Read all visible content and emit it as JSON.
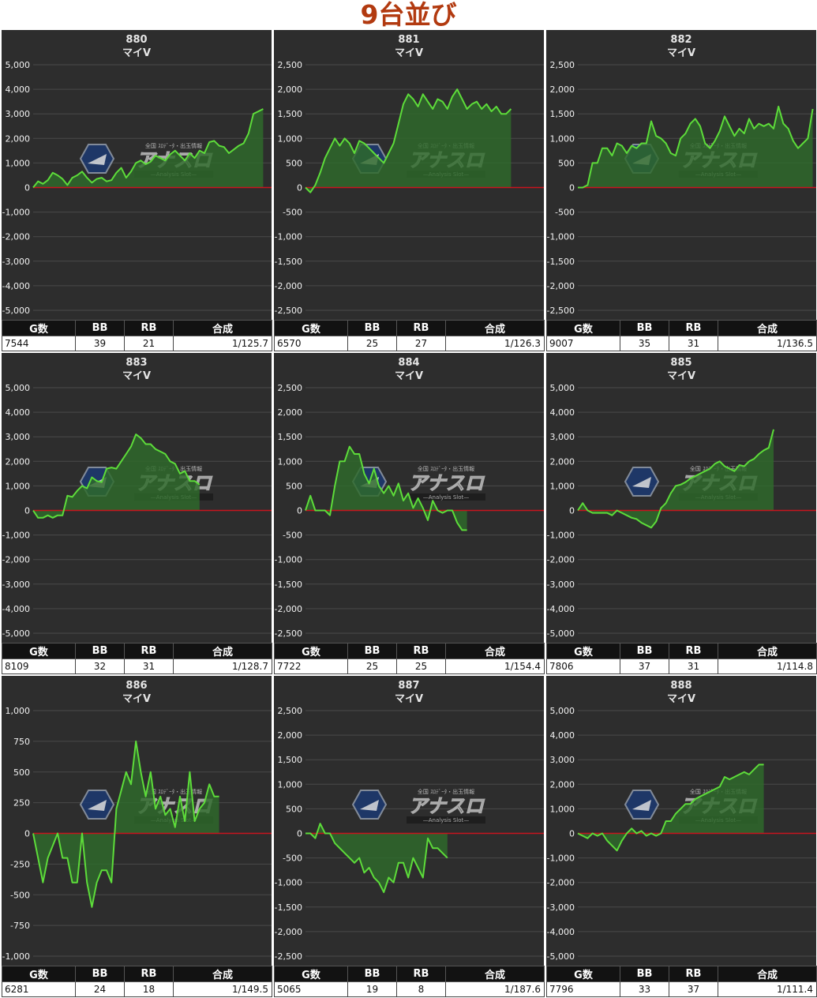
{
  "page": {
    "title": "9台並び"
  },
  "table_headers": {
    "games": "G数",
    "bb": "BB",
    "rb": "RB",
    "combined": "合成"
  },
  "watermark": {
    "top_text": "全国 ｽﾛﾃﾞｰﾀ・出玉情報",
    "logo_text": "アナスロ",
    "sub_text": "—Analysis Slot—"
  },
  "colors": {
    "background": "#2d2d2d",
    "grid": "#4a4a4a",
    "line": "#5ddc3a",
    "fill": "#2e6a2b",
    "zero_line": "#c8141e",
    "title": "#b23a10"
  },
  "chart_data": [
    {
      "type": "area",
      "title": "880",
      "subtitle": "マイV",
      "ylim": [
        -5000,
        5000
      ],
      "yticks": [
        "5,000",
        "4,000",
        "3,000",
        "2,000",
        "1,000",
        "0",
        "-1,000",
        "-2,000",
        "-3,000",
        "-4,000",
        "-5,000"
      ],
      "values": [
        0,
        250,
        150,
        300,
        600,
        500,
        350,
        100,
        400,
        500,
        650,
        400,
        200,
        350,
        400,
        250,
        300,
        600,
        800,
        400,
        650,
        1000,
        1100,
        950,
        1050,
        1300,
        1200,
        1100,
        1350,
        1500,
        1300,
        1100,
        1400,
        1200,
        1500,
        1400,
        1850,
        1900,
        1700,
        1650,
        1400,
        1550,
        1700,
        1800,
        2200,
        3000,
        3100,
        3200
      ],
      "stats": {
        "games": "7544",
        "bb": "39",
        "rb": "21",
        "combined": "1/125.7"
      }
    },
    {
      "type": "area",
      "title": "881",
      "subtitle": "マイV",
      "ylim": [
        -2500,
        2500
      ],
      "yticks": [
        "2,500",
        "2,000",
        "1,500",
        "1,000",
        "500",
        "0",
        "-500",
        "-1,000",
        "-1,500",
        "-2,000",
        "-2,500"
      ],
      "values": [
        0,
        -100,
        50,
        300,
        600,
        800,
        1000,
        850,
        1000,
        900,
        700,
        950,
        900,
        800,
        700,
        600,
        500,
        700,
        900,
        1300,
        1700,
        1900,
        1800,
        1650,
        1900,
        1750,
        1600,
        1800,
        1750,
        1600,
        1850,
        2000,
        1800,
        1600,
        1700,
        1750,
        1600,
        1700,
        1550,
        1650,
        1500,
        1500,
        1600
      ],
      "stats": {
        "games": "6570",
        "bb": "25",
        "rb": "27",
        "combined": "1/126.3"
      }
    },
    {
      "type": "area",
      "title": "882",
      "subtitle": "マイV",
      "ylim": [
        -2500,
        2500
      ],
      "yticks": [
        "2,500",
        "2,000",
        "1,500",
        "1,000",
        "500",
        "0",
        "-500",
        "-1,000",
        "-1,500",
        "-2,000",
        "-2,500"
      ],
      "values": [
        0,
        0,
        50,
        500,
        500,
        800,
        800,
        650,
        900,
        850,
        700,
        850,
        800,
        900,
        900,
        1350,
        1050,
        1000,
        900,
        700,
        650,
        1000,
        1100,
        1300,
        1400,
        1250,
        900,
        800,
        950,
        1150,
        1450,
        1250,
        1050,
        1200,
        1100,
        1400,
        1200,
        1300,
        1250,
        1300,
        1200,
        1650,
        1300,
        1200,
        950,
        800,
        900,
        1000,
        1600
      ],
      "stats": {
        "games": "9007",
        "bb": "35",
        "rb": "31",
        "combined": "1/136.5"
      }
    },
    {
      "type": "area",
      "title": "883",
      "subtitle": "マイV",
      "ylim": [
        -5000,
        5000
      ],
      "yticks": [
        "5,000",
        "4,000",
        "3,000",
        "2,000",
        "1,000",
        "0",
        "-1,000",
        "-2,000",
        "-3,000",
        "-4,000",
        "-5,000"
      ],
      "values": [
        0,
        -300,
        -300,
        -200,
        -300,
        -200,
        -200,
        600,
        550,
        800,
        1000,
        900,
        1350,
        1200,
        1150,
        1700,
        1750,
        1700,
        2000,
        2300,
        2600,
        3100,
        2950,
        2700,
        2700,
        2500,
        2400,
        2300,
        2000,
        1900,
        1500,
        1600,
        1200,
        1200,
        1050
      ],
      "stats": {
        "games": "8109",
        "bb": "32",
        "rb": "31",
        "combined": "1/128.7"
      }
    },
    {
      "type": "area",
      "title": "884",
      "subtitle": "マイV",
      "ylim": [
        -2500,
        2500
      ],
      "yticks": [
        "2,500",
        "2,000",
        "1,500",
        "1,000",
        "500",
        "0",
        "-500",
        "-1,000",
        "-1,500",
        "-2,000",
        "-2,500"
      ],
      "values": [
        0,
        300,
        0,
        0,
        0,
        -100,
        500,
        1000,
        1000,
        1300,
        1150,
        1150,
        750,
        550,
        850,
        500,
        350,
        500,
        300,
        550,
        200,
        350,
        50,
        250,
        50,
        -200,
        200,
        0,
        -50,
        0,
        0,
        -250,
        -400,
        -400
      ],
      "stats": {
        "games": "7722",
        "bb": "25",
        "rb": "25",
        "combined": "1/154.4"
      }
    },
    {
      "type": "area",
      "title": "885",
      "subtitle": "マイV",
      "ylim": [
        -5000,
        5000
      ],
      "yticks": [
        "5,000",
        "4,000",
        "3,000",
        "2,000",
        "1,000",
        "0",
        "-1,000",
        "-2,000",
        "-3,000",
        "-4,000",
        "-5,000"
      ],
      "values": [
        0,
        300,
        0,
        -100,
        -100,
        -100,
        -100,
        -200,
        0,
        -100,
        -200,
        -300,
        -350,
        -500,
        -600,
        -700,
        -450,
        100,
        300,
        700,
        1000,
        1050,
        1150,
        1300,
        1400,
        1500,
        1600,
        1700,
        1900,
        2000,
        1800,
        1700,
        1600,
        1850,
        1800,
        2000,
        2100,
        2300,
        2450,
        2550,
        3300
      ],
      "stats": {
        "games": "7806",
        "bb": "37",
        "rb": "31",
        "combined": "1/114.8"
      }
    },
    {
      "type": "area",
      "title": "886",
      "subtitle": "マイV",
      "ylim": [
        -1000,
        1000
      ],
      "yticks": [
        "1,000",
        "750",
        "500",
        "250",
        "0",
        "-250",
        "-500",
        "-750",
        "-1,000"
      ],
      "values": [
        0,
        -200,
        -400,
        -200,
        -100,
        0,
        -200,
        -200,
        -400,
        -400,
        0,
        -400,
        -600,
        -400,
        -300,
        -300,
        -400,
        200,
        350,
        500,
        400,
        750,
        500,
        300,
        500,
        200,
        300,
        150,
        200,
        50,
        300,
        100,
        500,
        100,
        200,
        250,
        400,
        300,
        300
      ],
      "stats": {
        "games": "6281",
        "bb": "24",
        "rb": "18",
        "combined": "1/149.5"
      }
    },
    {
      "type": "area",
      "title": "887",
      "subtitle": "マイV",
      "ylim": [
        -2500,
        2500
      ],
      "yticks": [
        "2,500",
        "2,000",
        "1,500",
        "1,000",
        "500",
        "0",
        "-500",
        "-1,000",
        "-1,500",
        "-2,000",
        "-2,500"
      ],
      "values": [
        0,
        0,
        -100,
        200,
        0,
        0,
        -200,
        -300,
        -400,
        -500,
        -600,
        -500,
        -800,
        -700,
        -900,
        -1000,
        -1200,
        -900,
        -1000,
        -600,
        -600,
        -900,
        -500,
        -700,
        -900,
        -100,
        -300,
        -300,
        -400,
        -500
      ],
      "stats": {
        "games": "5065",
        "bb": "19",
        "rb": "8",
        "combined": "1/187.6"
      }
    },
    {
      "type": "area",
      "title": "888",
      "subtitle": "マイV",
      "ylim": [
        -5000,
        5000
      ],
      "yticks": [
        "5,000",
        "4,000",
        "3,000",
        "2,000",
        "1,000",
        "0",
        "-1,000",
        "-2,000",
        "-3,000",
        "-4,000",
        "-5,000"
      ],
      "values": [
        0,
        -100,
        -200,
        0,
        -100,
        0,
        -300,
        -500,
        -700,
        -300,
        0,
        200,
        0,
        100,
        -100,
        0,
        -100,
        0,
        500,
        500,
        800,
        1000,
        1200,
        1200,
        1400,
        1500,
        1600,
        1700,
        1800,
        1900,
        2300,
        2200,
        2300,
        2400,
        2500,
        2400,
        2600,
        2800,
        2800
      ],
      "stats": {
        "games": "7796",
        "bb": "33",
        "rb": "37",
        "combined": "1/111.4"
      }
    }
  ]
}
